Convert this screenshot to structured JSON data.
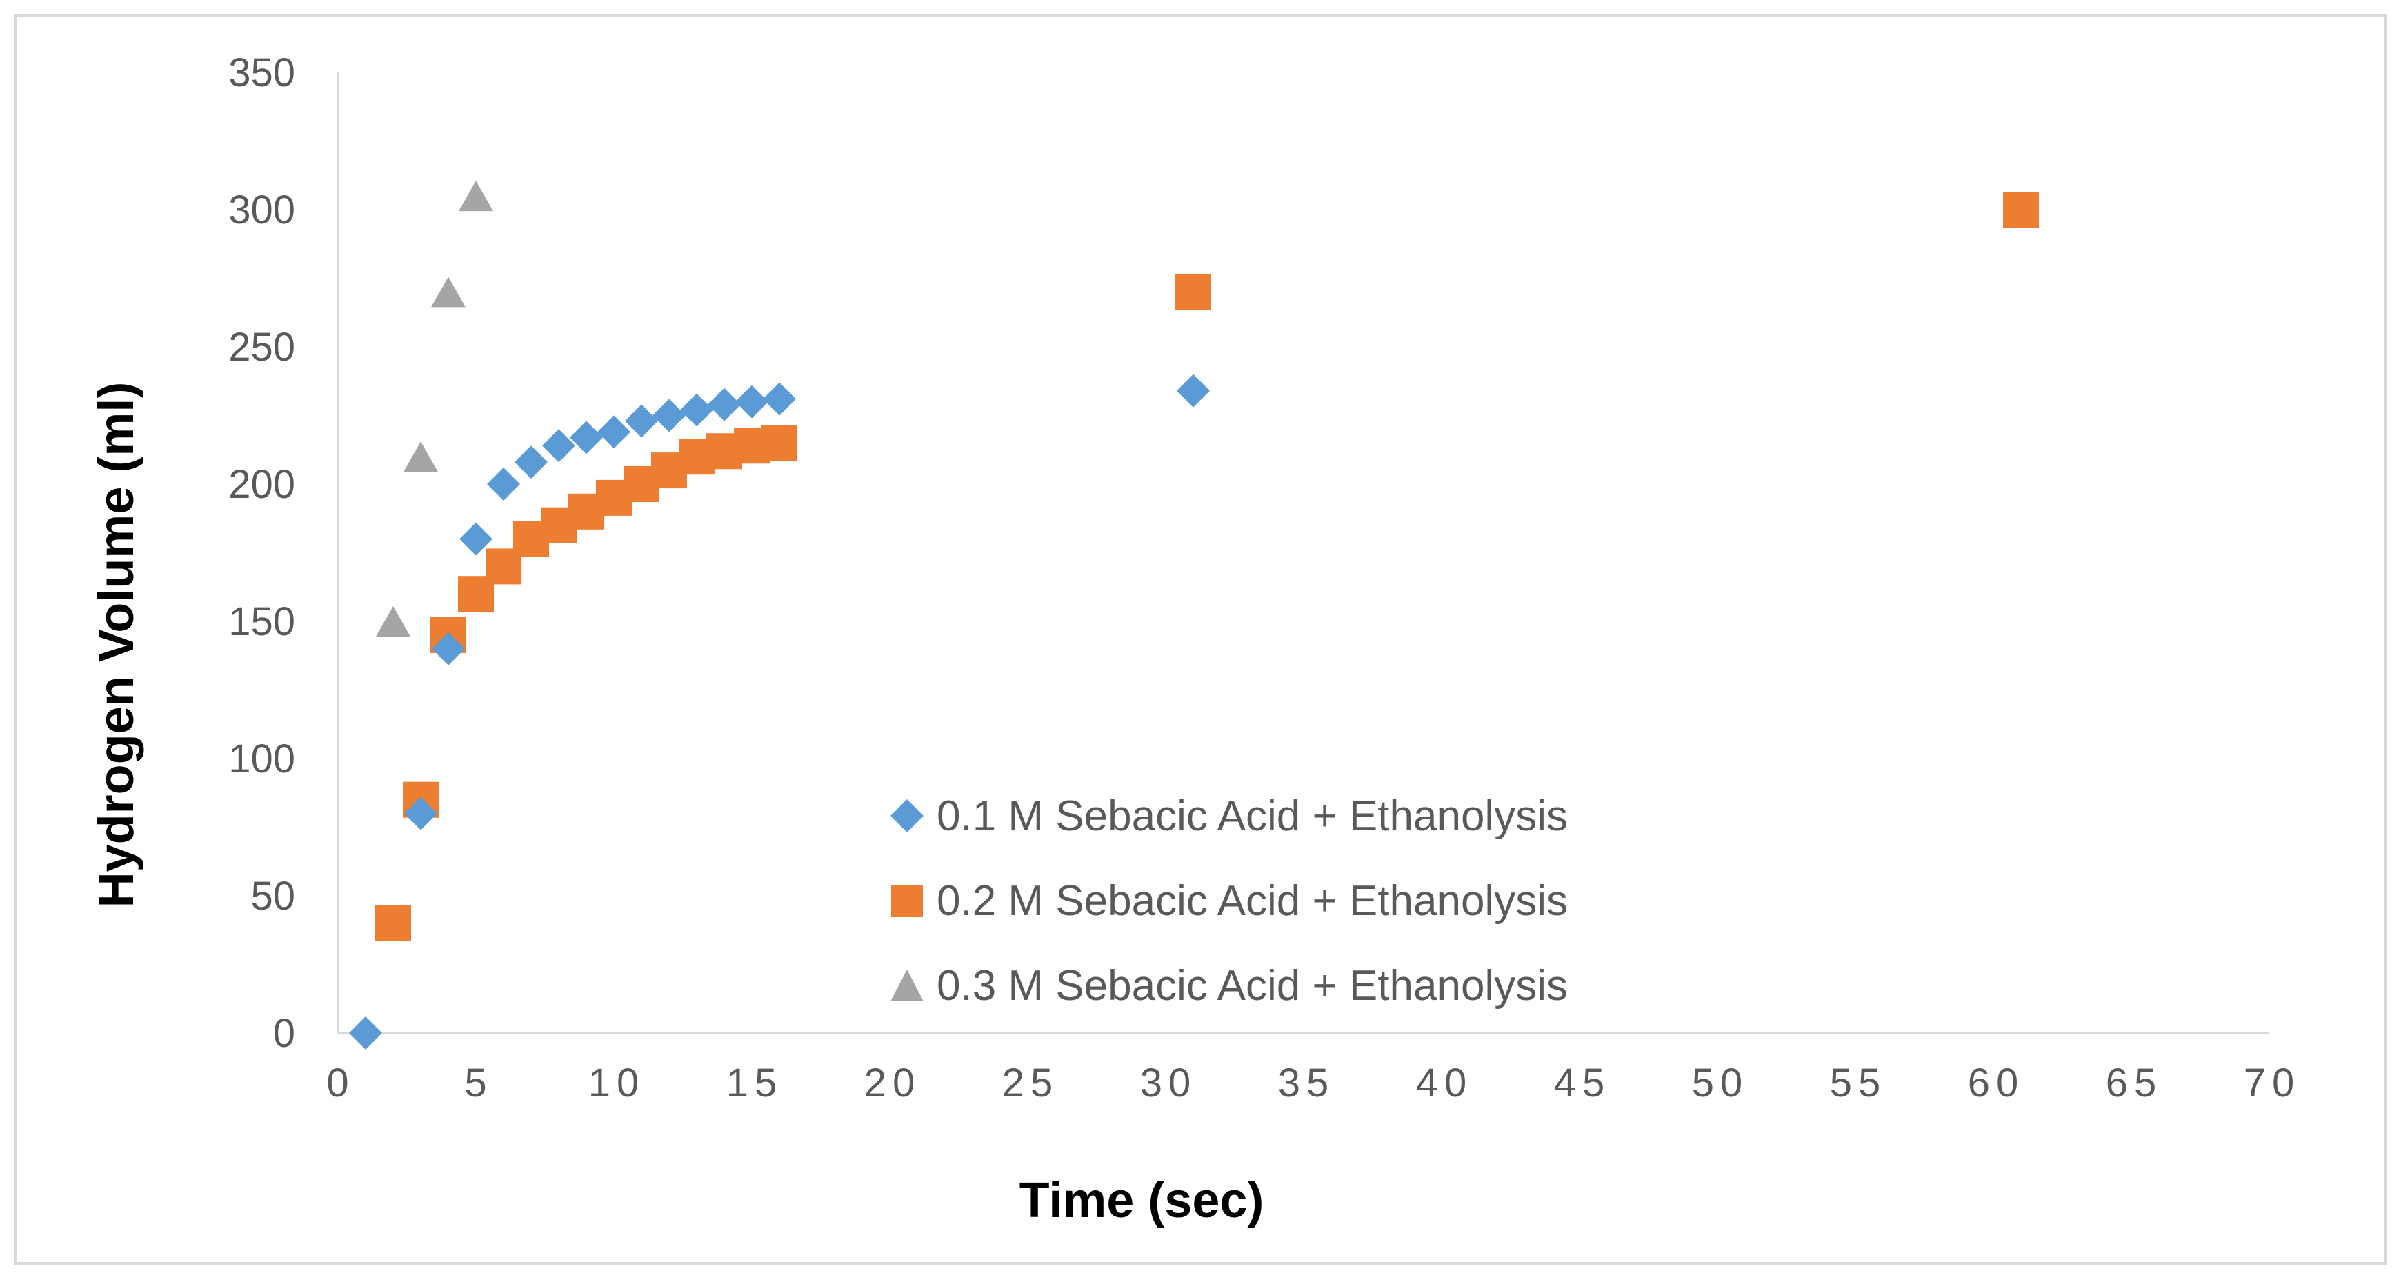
{
  "chart_data": {
    "type": "scatter",
    "title": "",
    "xlabel": "Time (sec)",
    "ylabel": "Hydrogen Volume (ml)",
    "xlim": [
      0,
      70
    ],
    "ylim": [
      0,
      350
    ],
    "xticks": [
      0,
      5,
      10,
      15,
      20,
      25,
      30,
      35,
      40,
      45,
      50,
      55,
      60,
      65,
      70
    ],
    "yticks": [
      0,
      50,
      100,
      150,
      200,
      250,
      300,
      350
    ],
    "grid": false,
    "legend_position": "inside-center",
    "series": [
      {
        "name": "0.1 M Sebacic Acid + Ethanolysis",
        "marker": "diamond",
        "color": "#5B9BD5",
        "x": [
          1,
          3,
          4,
          5,
          6,
          7,
          8,
          9,
          10,
          11,
          12,
          13,
          14,
          15,
          16,
          31
        ],
        "y": [
          0,
          80,
          140,
          180,
          200,
          208,
          214,
          217,
          219,
          223,
          225,
          227,
          229,
          230,
          231,
          234
        ]
      },
      {
        "name": "0.2 M Sebacic Acid + Ethanolysis",
        "marker": "square",
        "color": "#ED7D31",
        "x": [
          2,
          3,
          4,
          5,
          6,
          7,
          8,
          9,
          10,
          11,
          12,
          13,
          14,
          15,
          16,
          31,
          61
        ],
        "y": [
          40,
          85,
          145,
          160,
          170,
          180,
          185,
          190,
          195,
          200,
          205,
          210,
          212,
          214,
          215,
          270,
          300
        ]
      },
      {
        "name": "0.3 M Sebacic Acid + Ethanolysis",
        "marker": "triangle",
        "color": "#A5A5A5",
        "x": [
          2,
          3,
          4,
          5
        ],
        "y": [
          150,
          210,
          270,
          305
        ]
      }
    ]
  }
}
